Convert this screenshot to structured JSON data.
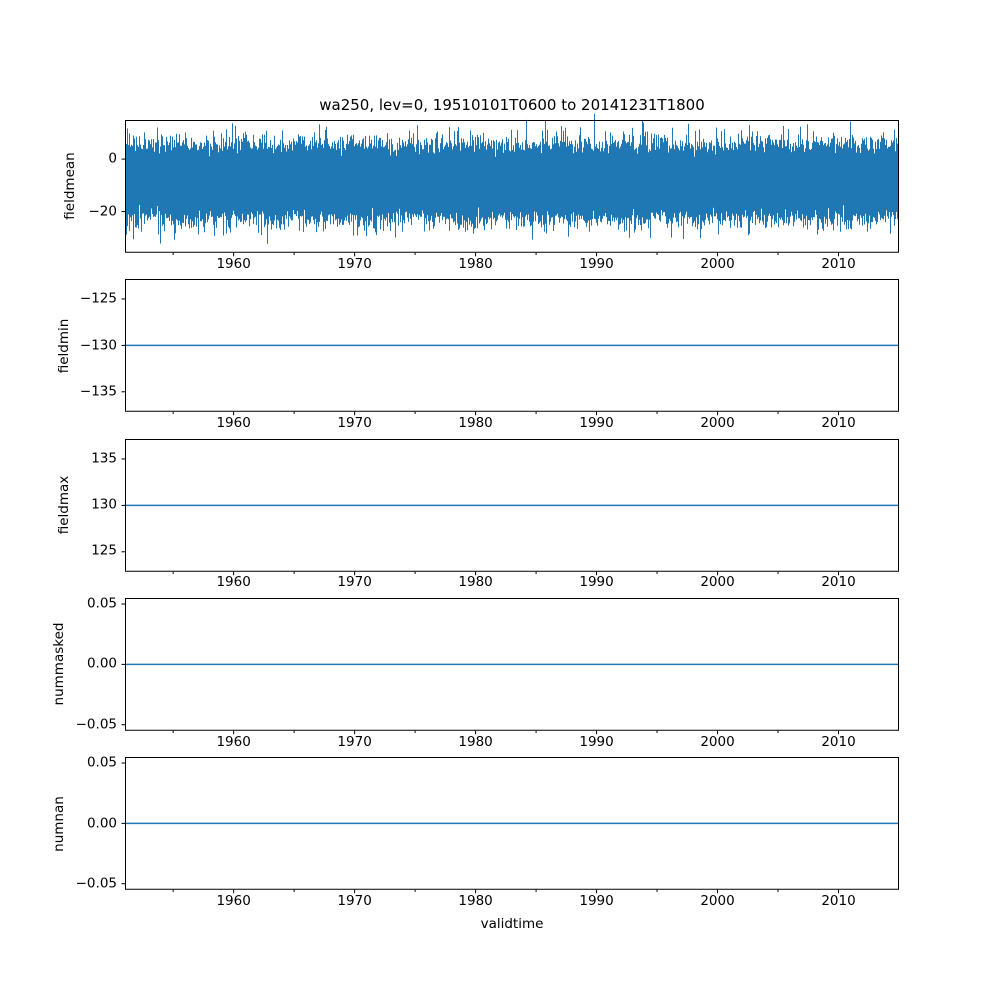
{
  "figure": {
    "title": "wa250, lev=0, 19510101T0600 to 20141231T1800",
    "xlabel": "validtime",
    "line_color": "#1f77b4",
    "axis_color": "#000000",
    "background": "#ffffff"
  },
  "chart_data": {
    "type": "line",
    "title": "wa250, lev=0, 19510101T0600 to 20141231T1800",
    "xlabel": "validtime",
    "grid": false,
    "legend": null,
    "x_axis": {
      "range_years": [
        1951.02,
        2015.0
      ],
      "major_ticks": [
        1960,
        1970,
        1980,
        1990,
        2000,
        2010
      ],
      "major_tick_labels": [
        "1960",
        "1970",
        "1980",
        "1990",
        "2000",
        "2010"
      ],
      "minor_ticks": [
        1955,
        1965,
        1975,
        1985,
        1995,
        2005
      ]
    },
    "subplots": [
      {
        "ylabel": "fieldmean",
        "ylim": [
          -35.7,
          14.9
        ],
        "yticks": [
          {
            "value": 0,
            "label": "0"
          },
          {
            "value": -20,
            "label": "−20"
          }
        ],
        "series": [
          {
            "name": "fieldmean",
            "kind": "dense_noise",
            "description": "6-hourly stationary noise, 19510101T0600 to 20141231T1800",
            "mean": -8.5,
            "std": 5.8,
            "typical_envelope": [
              -24,
              7
            ],
            "extremes": [
              -33,
              13
            ],
            "samples_per_column": 120,
            "seed": 77
          }
        ]
      },
      {
        "ylabel": "fieldmin",
        "ylim": [
          -137.15,
          -122.85
        ],
        "yticks": [
          {
            "value": -125,
            "label": "−125"
          },
          {
            "value": -130,
            "label": "−130"
          },
          {
            "value": -135,
            "label": "−135"
          }
        ],
        "series": [
          {
            "name": "fieldmin",
            "kind": "constant",
            "value": -130
          }
        ]
      },
      {
        "ylabel": "fieldmax",
        "ylim": [
          122.85,
          137.15
        ],
        "yticks": [
          {
            "value": 135,
            "label": "135"
          },
          {
            "value": 130,
            "label": "130"
          },
          {
            "value": 125,
            "label": "125"
          }
        ],
        "series": [
          {
            "name": "fieldmax",
            "kind": "constant",
            "value": 130
          }
        ]
      },
      {
        "ylabel": "nummasked",
        "ylim": [
          -0.055,
          0.055
        ],
        "yticks": [
          {
            "value": 0.05,
            "label": "0.05"
          },
          {
            "value": 0.0,
            "label": "0.00"
          },
          {
            "value": -0.05,
            "label": "−0.05"
          }
        ],
        "series": [
          {
            "name": "nummasked",
            "kind": "constant",
            "value": 0
          }
        ]
      },
      {
        "ylabel": "numnan",
        "ylim": [
          -0.055,
          0.055
        ],
        "yticks": [
          {
            "value": 0.05,
            "label": "0.05"
          },
          {
            "value": 0.0,
            "label": "0.00"
          },
          {
            "value": -0.05,
            "label": "−0.05"
          }
        ],
        "series": [
          {
            "name": "numnan",
            "kind": "constant",
            "value": 0
          }
        ]
      }
    ]
  }
}
